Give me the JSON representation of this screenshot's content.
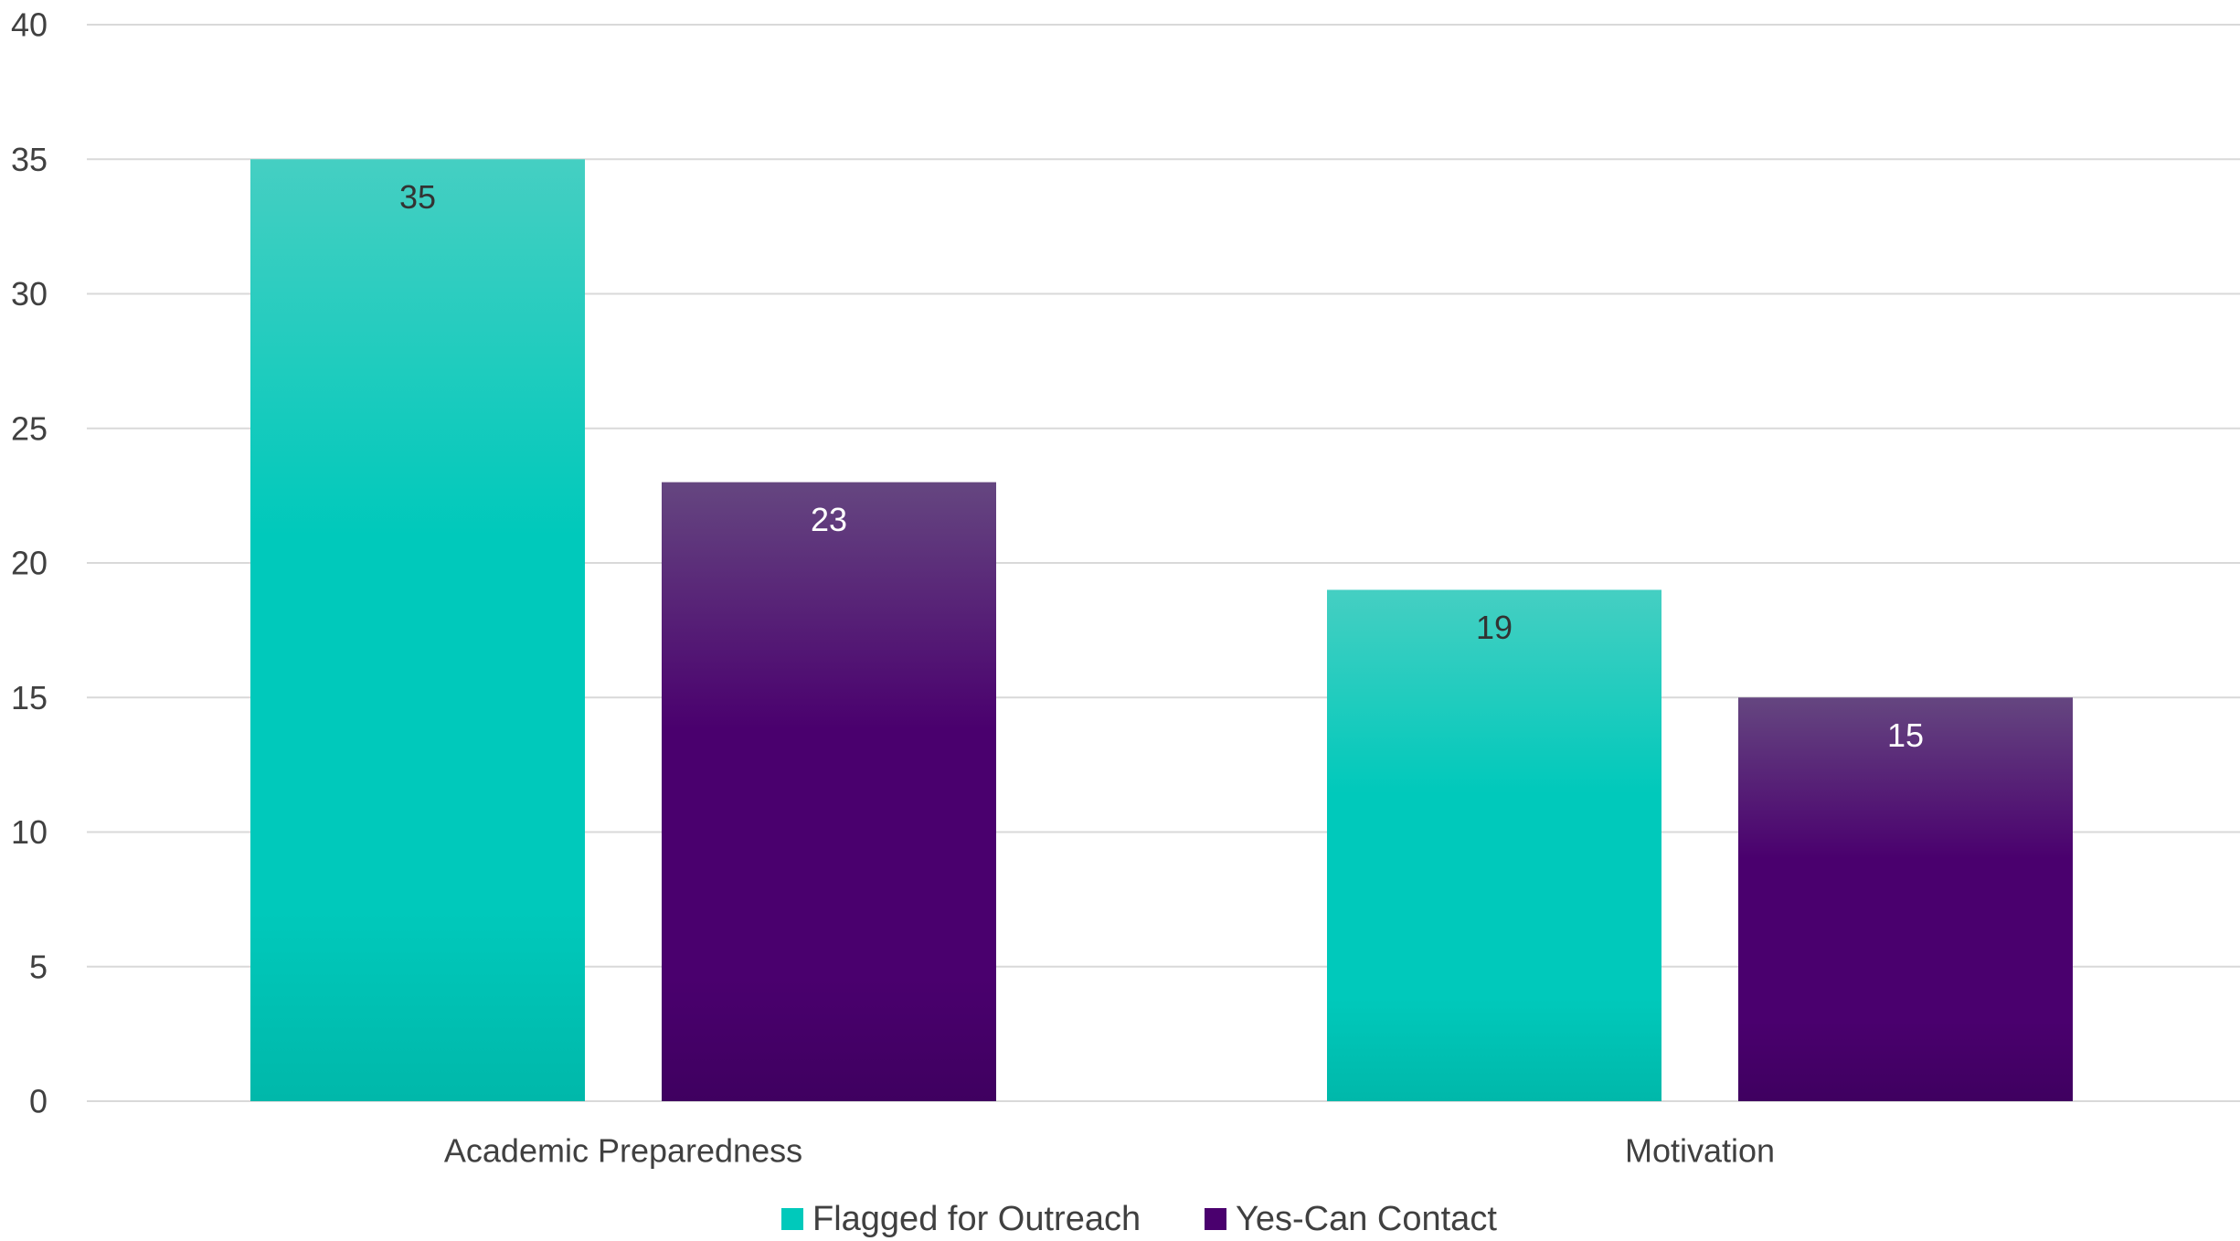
{
  "chart_data": {
    "type": "bar",
    "categories": [
      "Academic Preparedness",
      "Motivation"
    ],
    "series": [
      {
        "name": "Flagged for Outreach",
        "values": [
          35,
          19
        ],
        "color": "#00c9bb",
        "color_light": "#45cfc2",
        "color_dark": "#00b8aa",
        "label_color": "#333333"
      },
      {
        "name": "Yes-Can Contact",
        "values": [
          23,
          15
        ],
        "color": "#4a006e",
        "color_light": "#654680",
        "color_dark": "#3f0060",
        "label_color": "#ffffff"
      }
    ],
    "ylim": [
      0,
      40
    ],
    "yticks": [
      0,
      5,
      10,
      15,
      20,
      25,
      30,
      35,
      40
    ],
    "grid": true,
    "legend_position": "bottom",
    "title": "",
    "xlabel": "",
    "ylabel": ""
  }
}
